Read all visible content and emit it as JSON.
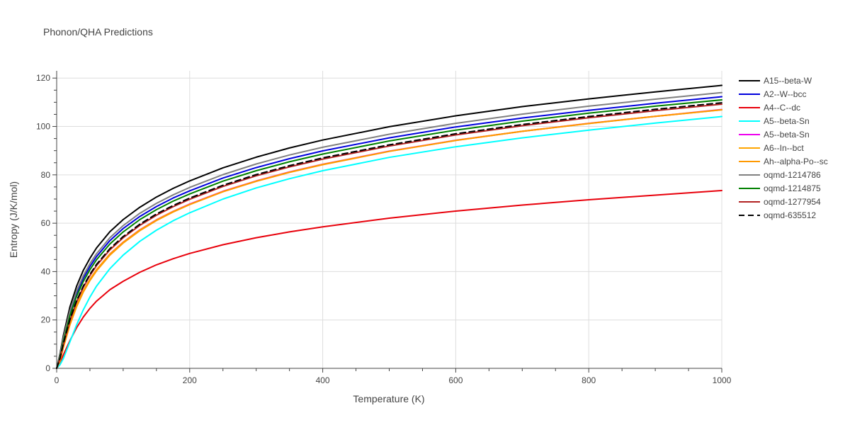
{
  "chart_data": {
    "type": "line",
    "title": "Phonon/QHA Predictions",
    "xlabel": "Temperature (K)",
    "ylabel": "Entropy (J/K/mol)",
    "xlim": [
      0,
      1000
    ],
    "ylim": [
      0,
      123
    ],
    "xticks": [
      0,
      200,
      400,
      600,
      800,
      1000
    ],
    "yticks": [
      0,
      20,
      40,
      60,
      80,
      100,
      120
    ],
    "grid": true,
    "legend_position": "right",
    "x": [
      0,
      5,
      10,
      20,
      30,
      40,
      50,
      60,
      80,
      100,
      125,
      150,
      175,
      200,
      250,
      300,
      350,
      400,
      500,
      600,
      700,
      800,
      900,
      1000
    ],
    "series": [
      {
        "name": "A15--beta-W",
        "color": "#000000",
        "dash": false,
        "values": [
          0,
          6,
          13.5,
          25.5,
          34.0,
          40.5,
          45.5,
          49.8,
          56.5,
          61.5,
          66.6,
          70.8,
          74.4,
          77.5,
          82.9,
          87.3,
          91.1,
          94.4,
          99.9,
          104.4,
          108.2,
          111.4,
          114.3,
          117.0
        ]
      },
      {
        "name": "A2--W--bcc",
        "color": "#0000dd",
        "dash": false,
        "values": [
          0,
          5,
          11.8,
          22.8,
          31.0,
          37.2,
          42.1,
          46.2,
          52.8,
          57.8,
          62.8,
          66.9,
          70.4,
          73.4,
          78.7,
          83.0,
          86.7,
          89.9,
          95.3,
          99.8,
          103.5,
          106.7,
          109.6,
          112.3
        ]
      },
      {
        "name": "A4--C--dc",
        "color": "#e8000b",
        "dash": false,
        "values": [
          0,
          2.5,
          5.5,
          11.5,
          16.8,
          21.2,
          24.8,
          27.8,
          32.5,
          36.0,
          39.7,
          42.8,
          45.3,
          47.5,
          51.1,
          54.0,
          56.4,
          58.5,
          62.1,
          65.0,
          67.5,
          69.7,
          71.6,
          73.5
        ]
      },
      {
        "name": "A5--beta-Sn",
        "color": "#00ffff",
        "dash": false,
        "values": [
          0,
          1.5,
          4.0,
          11.0,
          18.0,
          24.2,
          29.5,
          34.0,
          41.2,
          46.8,
          52.5,
          57.1,
          61.0,
          64.3,
          70.0,
          74.6,
          78.4,
          81.7,
          87.2,
          91.6,
          95.3,
          98.5,
          101.4,
          104.1
        ]
      },
      {
        "name": "A5--beta-Sn",
        "color": "#ee00ee",
        "dash": false,
        "values": [
          0,
          3.5,
          9.0,
          18.5,
          26.0,
          32.0,
          36.8,
          40.8,
          47.3,
          52.2,
          57.3,
          61.4,
          64.9,
          67.9,
          73.2,
          77.5,
          81.2,
          84.4,
          89.8,
          94.3,
          98.0,
          101.3,
          104.2,
          107.0
        ]
      },
      {
        "name": "A6--In--bct",
        "color": "#ffa500",
        "dash": false,
        "values": [
          0,
          3.5,
          9.0,
          18.5,
          26.0,
          32.0,
          36.8,
          40.8,
          47.2,
          52.1,
          57.2,
          61.3,
          64.8,
          67.8,
          73.1,
          77.4,
          81.1,
          84.3,
          89.7,
          94.2,
          98.0,
          101.2,
          104.2,
          106.9
        ]
      },
      {
        "name": "Ah--alpha-Po--sc",
        "color": "#ff9900",
        "dash": false,
        "values": [
          0,
          3.0,
          8.5,
          18.0,
          25.5,
          31.5,
          36.3,
          40.3,
          46.8,
          51.8,
          56.9,
          61.1,
          64.6,
          67.7,
          73.0,
          77.3,
          81.0,
          84.2,
          89.7,
          94.2,
          98.0,
          101.2,
          104.2,
          106.9
        ]
      },
      {
        "name": "oqmd-1214786",
        "color": "#808080",
        "dash": false,
        "values": [
          0,
          5.5,
          12.5,
          23.8,
          32.0,
          38.3,
          43.3,
          47.4,
          54.0,
          59.0,
          64.1,
          68.2,
          71.7,
          74.8,
          80.1,
          84.5,
          88.2,
          91.4,
          96.8,
          101.3,
          105.1,
          108.4,
          111.3,
          114.0
        ]
      },
      {
        "name": "oqmd-1214875",
        "color": "#008000",
        "dash": false,
        "values": [
          0,
          4.5,
          11.0,
          21.8,
          29.8,
          35.9,
          40.8,
          44.9,
          51.4,
          56.4,
          61.5,
          65.6,
          69.1,
          72.1,
          77.4,
          81.7,
          85.4,
          88.6,
          94.0,
          98.5,
          102.2,
          105.5,
          108.4,
          111.0
        ]
      },
      {
        "name": "oqmd-1277954",
        "color": "#b22222",
        "dash": false,
        "values": [
          0,
          4.0,
          9.8,
          19.8,
          27.5,
          33.5,
          38.4,
          42.5,
          49.0,
          54.0,
          59.1,
          63.3,
          66.8,
          69.9,
          75.2,
          79.6,
          83.3,
          86.5,
          91.9,
          96.5,
          100.3,
          103.6,
          106.5,
          109.2
        ]
      },
      {
        "name": "oqmd-635512",
        "color": "#000000",
        "dash": true,
        "values": [
          0,
          4.2,
          10.2,
          20.3,
          28.0,
          34.0,
          38.9,
          43.0,
          49.5,
          54.5,
          59.6,
          63.8,
          67.3,
          70.4,
          75.7,
          80.1,
          83.8,
          87.0,
          92.4,
          97.0,
          100.8,
          104.1,
          107.1,
          109.8
        ]
      }
    ]
  }
}
